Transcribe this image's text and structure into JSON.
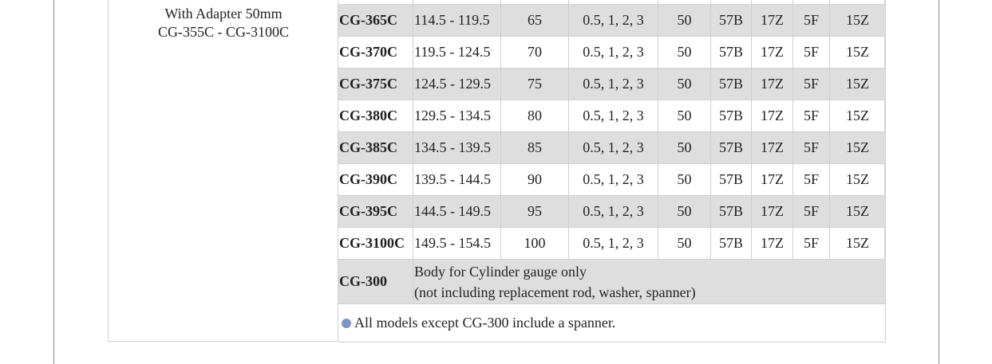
{
  "adapter": {
    "line1": "With Adapter 50mm",
    "line2": "CG-355C - CG-3100C"
  },
  "rows": [
    {
      "model": "CG-365C",
      "range": "114.5 - 119.5",
      "rod": "65",
      "washer": "0.5, 1, 2, 3",
      "depth": "50",
      "c1": "57B",
      "c2": "17Z",
      "c3": "5F",
      "c4": "15Z"
    },
    {
      "model": "CG-370C",
      "range": "119.5 - 124.5",
      "rod": "70",
      "washer": "0.5, 1, 2, 3",
      "depth": "50",
      "c1": "57B",
      "c2": "17Z",
      "c3": "5F",
      "c4": "15Z"
    },
    {
      "model": "CG-375C",
      "range": "124.5 - 129.5",
      "rod": "75",
      "washer": "0.5, 1, 2, 3",
      "depth": "50",
      "c1": "57B",
      "c2": "17Z",
      "c3": "5F",
      "c4": "15Z"
    },
    {
      "model": "CG-380C",
      "range": "129.5 - 134.5",
      "rod": "80",
      "washer": "0.5, 1, 2, 3",
      "depth": "50",
      "c1": "57B",
      "c2": "17Z",
      "c3": "5F",
      "c4": "15Z"
    },
    {
      "model": "CG-385C",
      "range": "134.5 - 139.5",
      "rod": "85",
      "washer": "0.5, 1, 2, 3",
      "depth": "50",
      "c1": "57B",
      "c2": "17Z",
      "c3": "5F",
      "c4": "15Z"
    },
    {
      "model": "CG-390C",
      "range": "139.5 - 144.5",
      "rod": "90",
      "washer": "0.5, 1, 2, 3",
      "depth": "50",
      "c1": "57B",
      "c2": "17Z",
      "c3": "5F",
      "c4": "15Z"
    },
    {
      "model": "CG-395C",
      "range": "144.5 - 149.5",
      "rod": "95",
      "washer": "0.5, 1, 2, 3",
      "depth": "50",
      "c1": "57B",
      "c2": "17Z",
      "c3": "5F",
      "c4": "15Z"
    },
    {
      "model": "CG-3100C",
      "range": "149.5 - 154.5",
      "rod": "100",
      "washer": "0.5, 1, 2, 3",
      "depth": "50",
      "c1": "57B",
      "c2": "17Z",
      "c3": "5F",
      "c4": "15Z"
    }
  ],
  "body_row": {
    "model": "CG-300",
    "desc_line1": "Body for Cylinder gauge only",
    "desc_line2": "(not including replacement rod, washer, spanner)"
  },
  "note": {
    "text": "All models except CG-300 include a spanner."
  },
  "colors": {
    "shaded_row": "#dedede",
    "border": "#d0d0d0",
    "bullet": "#7f94c4"
  }
}
